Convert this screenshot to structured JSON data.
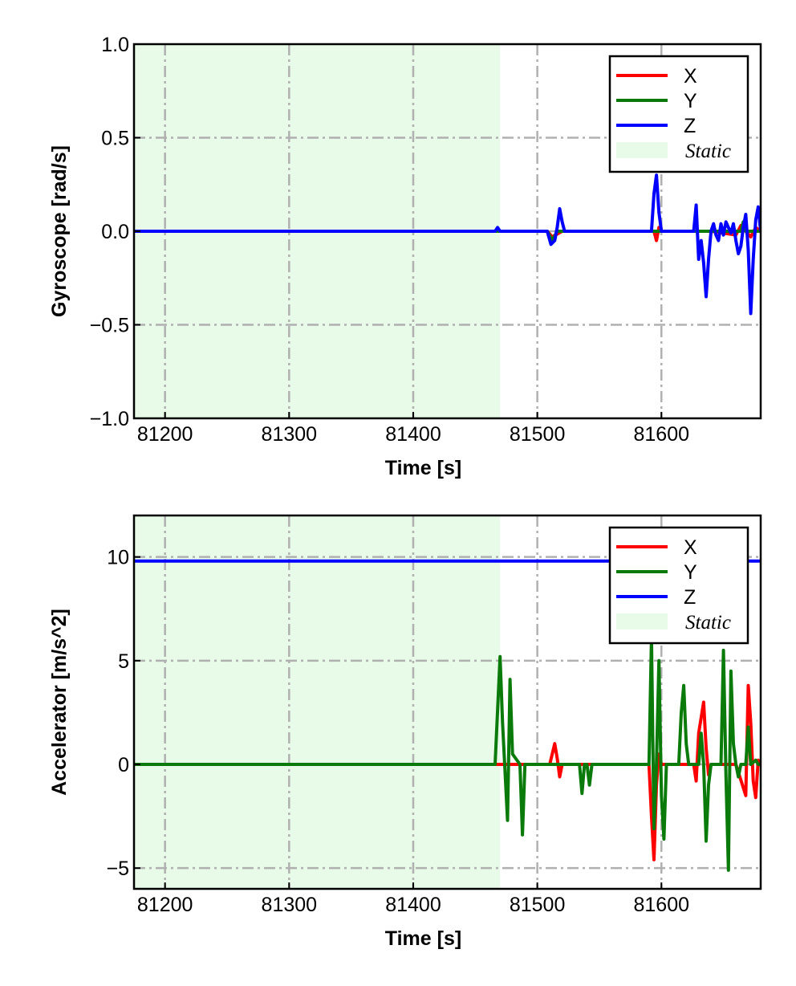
{
  "chart_data": [
    {
      "type": "line",
      "ylabel": "Gyroscope [rad/s]",
      "xlabel": "Time [s]",
      "xlim": [
        81175,
        81680
      ],
      "ylim": [
        -1.0,
        1.0
      ],
      "x_ticks": [
        81200,
        81300,
        81400,
        81500,
        81600
      ],
      "x_tick_labels": [
        "81200",
        "81300",
        "81400",
        "81500",
        "81600"
      ],
      "y_ticks": [
        1.0,
        0.5,
        0.0,
        -0.5,
        -1.0
      ],
      "y_tick_labels": [
        "1.0",
        "0.5",
        "0.0",
        "−0.5",
        "−1.0"
      ],
      "grid": true,
      "legend_position": "top-right",
      "static_region": {
        "label": "Static",
        "x_start": 81175,
        "x_end": 81470,
        "color": "#e8fbe8"
      },
      "series": [
        {
          "name": "X",
          "color": "#ff0000",
          "x": [
            81175,
            81470,
            81508,
            81512,
            81520,
            81594,
            81596,
            81598,
            81600,
            81640,
            81660,
            81664,
            81668,
            81672,
            81676,
            81680
          ],
          "y": [
            0.0,
            0.0,
            0.0,
            -0.03,
            0.0,
            0.0,
            -0.05,
            0.02,
            0.0,
            0.0,
            -0.02,
            0.03,
            0.0,
            -0.03,
            0.02,
            0.0
          ]
        },
        {
          "name": "Y",
          "color": "#0a7a0a",
          "x": [
            81175,
            81508,
            81512,
            81516,
            81520,
            81630,
            81650,
            81664,
            81666,
            81668,
            81670,
            81680
          ],
          "y": [
            0.0,
            0.0,
            -0.05,
            0.0,
            0.0,
            0.0,
            0.0,
            0.0,
            0.05,
            0.0,
            0.0,
            0.0
          ]
        },
        {
          "name": "Z",
          "color": "#0000ff",
          "x": [
            81175,
            81466,
            81468,
            81470,
            81472,
            81508,
            81511,
            81514,
            81516,
            81518,
            81520,
            81522,
            81592,
            81594,
            81596,
            81598,
            81600,
            81626,
            81628,
            81630,
            81632,
            81634,
            81636,
            81638,
            81640,
            81642,
            81644,
            81646,
            81648,
            81650,
            81652,
            81654,
            81656,
            81658,
            81660,
            81662,
            81664,
            81666,
            81668,
            81670,
            81672,
            81674,
            81676,
            81678,
            81680
          ],
          "y": [
            0.0,
            0.0,
            0.02,
            0.0,
            0.0,
            0.0,
            -0.07,
            -0.05,
            0.02,
            0.12,
            0.05,
            0.0,
            0.0,
            0.2,
            0.3,
            0.1,
            0.0,
            0.0,
            0.14,
            -0.15,
            -0.05,
            -0.17,
            -0.35,
            -0.15,
            0.0,
            0.04,
            -0.02,
            -0.05,
            0.04,
            -0.02,
            0.05,
            0.02,
            -0.01,
            0.04,
            -0.05,
            -0.12,
            -0.08,
            0.02,
            0.09,
            -0.1,
            -0.44,
            -0.15,
            0.06,
            0.13,
            0.0
          ]
        }
      ]
    },
    {
      "type": "line",
      "ylabel": "Accelerator [m/s^2]",
      "xlabel": "Time [s]",
      "xlim": [
        81175,
        81680
      ],
      "ylim": [
        -6.0,
        12.0
      ],
      "x_ticks": [
        81200,
        81300,
        81400,
        81500,
        81600
      ],
      "x_tick_labels": [
        "81200",
        "81300",
        "81400",
        "81500",
        "81600"
      ],
      "y_ticks": [
        10,
        5,
        0,
        -5
      ],
      "y_tick_labels": [
        "10",
        "5",
        "0",
        "−5"
      ],
      "grid": true,
      "legend_position": "top-right",
      "static_region": {
        "label": "Static",
        "x_start": 81175,
        "x_end": 81470,
        "color": "#e8fbe8"
      },
      "series": [
        {
          "name": "X",
          "color": "#ff0000",
          "x": [
            81175,
            81510,
            81512,
            81514,
            81516,
            81518,
            81520,
            81590,
            81592,
            81594,
            81596,
            81598,
            81600,
            81626,
            81628,
            81630,
            81634,
            81636,
            81638,
            81640,
            81660,
            81668,
            81670,
            81672,
            81674,
            81676,
            81678,
            81680
          ],
          "y": [
            0.0,
            0.0,
            0.5,
            1.0,
            0.3,
            -0.6,
            0.0,
            0.0,
            -2.5,
            -4.6,
            -1.0,
            0.5,
            0.0,
            0.0,
            -0.8,
            1.5,
            3.0,
            0.8,
            -0.5,
            0.0,
            0.0,
            -1.5,
            3.8,
            2.0,
            -0.8,
            -1.6,
            0.2,
            0.0
          ]
        },
        {
          "name": "Y",
          "color": "#0a7a0a",
          "x": [
            81175,
            81466,
            81470,
            81472,
            81476,
            81478,
            81480,
            81486,
            81488,
            81490,
            81534,
            81536,
            81538,
            81540,
            81542,
            81544,
            81590,
            81592,
            81594,
            81596,
            81598,
            81600,
            81602,
            81604,
            81606,
            81614,
            81616,
            81618,
            81620,
            81622,
            81624,
            81630,
            81632,
            81634,
            81636,
            81638,
            81640,
            81648,
            81650,
            81652,
            81654,
            81656,
            81658,
            81660,
            81662,
            81664,
            81668,
            81670,
            81672,
            81676,
            81678,
            81680
          ],
          "y": [
            0.0,
            0.0,
            5.2,
            2.0,
            -2.7,
            4.1,
            0.5,
            0.0,
            -3.4,
            0.0,
            0.0,
            -1.4,
            0.0,
            0.0,
            -1.0,
            0.0,
            0.0,
            6.1,
            -3.1,
            0.0,
            5.0,
            -1.5,
            -3.6,
            0.0,
            0.0,
            0.0,
            2.5,
            3.8,
            1.0,
            0.0,
            0.0,
            0.0,
            1.5,
            0.0,
            -3.7,
            -1.0,
            0.0,
            0.0,
            5.5,
            -0.5,
            -5.1,
            4.5,
            1.0,
            0.0,
            -0.6,
            0.0,
            0.0,
            1.8,
            0.0,
            0.2,
            0.0,
            0.0
          ]
        },
        {
          "name": "Z",
          "color": "#0000ff",
          "x": [
            81175,
            81680
          ],
          "y": [
            9.8,
            9.8
          ]
        }
      ]
    }
  ]
}
